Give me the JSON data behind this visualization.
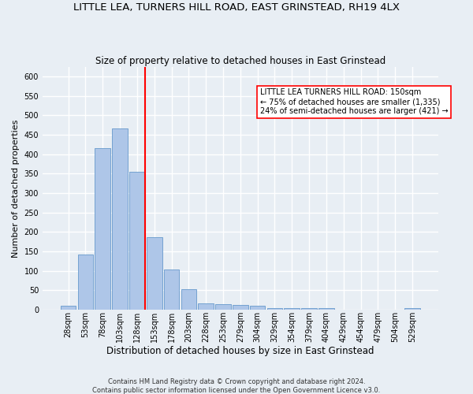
{
  "title": "LITTLE LEA, TURNERS HILL ROAD, EAST GRINSTEAD, RH19 4LX",
  "subtitle": "Size of property relative to detached houses in East Grinstead",
  "xlabel": "Distribution of detached houses by size in East Grinstead",
  "ylabel": "Number of detached properties",
  "footnote1": "Contains HM Land Registry data © Crown copyright and database right 2024.",
  "footnote2": "Contains public sector information licensed under the Open Government Licence v3.0.",
  "bar_labels": [
    "28sqm",
    "53sqm",
    "78sqm",
    "103sqm",
    "128sqm",
    "153sqm",
    "178sqm",
    "203sqm",
    "228sqm",
    "253sqm",
    "279sqm",
    "304sqm",
    "329sqm",
    "354sqm",
    "379sqm",
    "404sqm",
    "429sqm",
    "454sqm",
    "479sqm",
    "504sqm",
    "529sqm"
  ],
  "bar_values": [
    10,
    143,
    416,
    466,
    354,
    186,
    103,
    54,
    16,
    15,
    12,
    10,
    5,
    5,
    5,
    5,
    0,
    0,
    0,
    0,
    5
  ],
  "bar_color": "#aec6e8",
  "bar_edge_color": "#6699cc",
  "vline_color": "red",
  "annotation_title": "LITTLE LEA TURNERS HILL ROAD: 150sqm",
  "annotation_line1": "← 75% of detached houses are smaller (1,335)",
  "annotation_line2": "24% of semi-detached houses are larger (421) →",
  "annotation_box_color": "white",
  "annotation_box_edge_color": "red",
  "vline_bin_index": 4,
  "ylim": [
    0,
    625
  ],
  "yticks": [
    0,
    50,
    100,
    150,
    200,
    250,
    300,
    350,
    400,
    450,
    500,
    550,
    600
  ],
  "background_color": "#e8eef4",
  "grid_color": "white",
  "title_fontsize": 9.5,
  "subtitle_fontsize": 8.5,
  "xlabel_fontsize": 8.5,
  "ylabel_fontsize": 8,
  "tick_fontsize": 7,
  "footnote_fontsize": 6
}
